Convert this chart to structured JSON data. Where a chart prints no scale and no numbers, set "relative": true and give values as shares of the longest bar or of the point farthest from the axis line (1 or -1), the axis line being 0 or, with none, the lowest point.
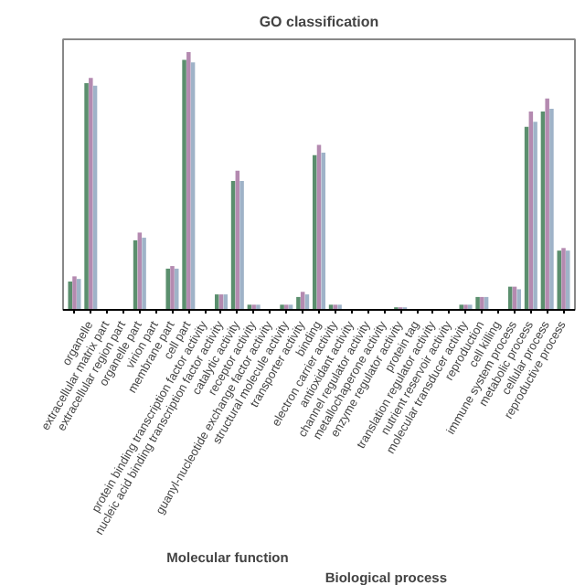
{
  "chart_data": {
    "type": "bar",
    "title": "GO classification",
    "relative": true,
    "grid": false,
    "categories": [
      null,
      "organelle",
      "extracellular matrix part",
      "extracellular region part",
      "organelle part",
      "virion part",
      "membrane part",
      "cell part",
      "protein binding transcription factor activity",
      "nucleic acid binding transcription factor activity",
      "catalytic activity",
      "receptor activity",
      "guanyl-nucleotide exchange factor activity",
      "structural molecule activity",
      "transporter activity",
      "binding",
      "electron carrier activity",
      "antioxidant activity",
      "channel regulator activity",
      "metallochaperone activity",
      "enzyme regulator activity",
      "protein tag",
      "translation regulator activity",
      "nutrient reservoir activity",
      "molecular transducer activity",
      "reproduction",
      "cell killing",
      "immune system process",
      "metabolic process",
      "cellular process",
      "reproductive process"
    ],
    "series": [
      {
        "color": "#5b8f6e",
        "values": [
          0.11,
          0.88,
          0,
          0,
          0.27,
          0,
          0.16,
          0.97,
          0,
          0.06,
          0.5,
          0.02,
          0,
          0.02,
          0.05,
          0.6,
          0.02,
          0,
          0,
          0,
          0.01,
          0,
          0,
          0,
          0.02,
          0.05,
          0,
          0.09,
          0.71,
          0.77,
          0.23
        ]
      },
      {
        "color": "#b48ab0",
        "values": [
          0.13,
          0.9,
          0,
          0,
          0.3,
          0,
          0.17,
          1.0,
          0,
          0.06,
          0.54,
          0.02,
          0,
          0.02,
          0.07,
          0.64,
          0.02,
          0,
          0,
          0,
          0.01,
          0,
          0,
          0,
          0.02,
          0.05,
          0,
          0.09,
          0.77,
          0.82,
          0.24
        ]
      },
      {
        "color": "#9fb3c8",
        "values": [
          0.12,
          0.87,
          0,
          0,
          0.28,
          0,
          0.16,
          0.96,
          0,
          0.06,
          0.5,
          0.02,
          0,
          0.02,
          0.06,
          0.61,
          0.02,
          0,
          0,
          0,
          0.01,
          0,
          0,
          0,
          0.02,
          0.05,
          0,
          0.08,
          0.73,
          0.78,
          0.23
        ]
      }
    ],
    "annotations": [
      "Molecular function",
      "Biological process"
    ]
  }
}
